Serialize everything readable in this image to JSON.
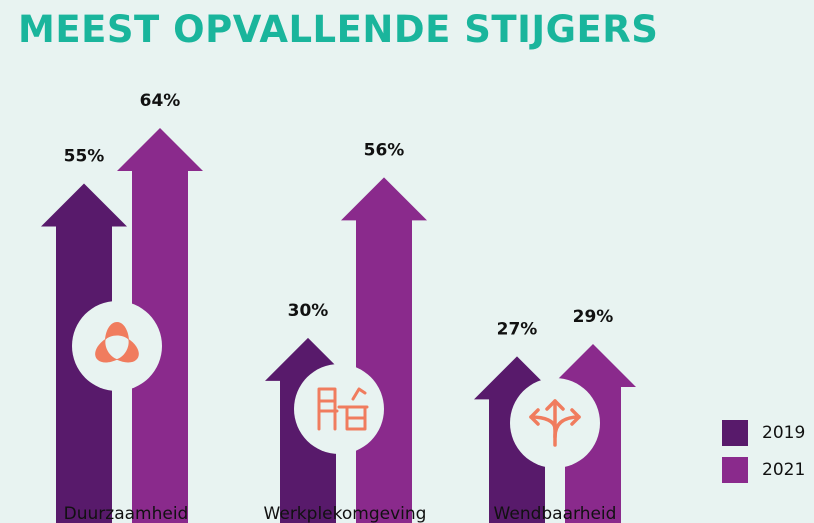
{
  "title": "MEEST OPVALLENDE STIJGERS",
  "chart_data": {
    "type": "bar",
    "title": "MEEST OPVALLENDE STIJGERS",
    "categories": [
      "Duurzaamheid",
      "Werkplekomgeving",
      "Wendbaarheid"
    ],
    "icons": [
      "recycle-leaves-icon",
      "desk-chair-icon",
      "split-arrows-icon"
    ],
    "series": [
      {
        "name": "2019",
        "color": "#581a6b",
        "values": [
          55,
          30,
          27
        ],
        "labels": [
          "55%",
          "30%",
          "27%"
        ]
      },
      {
        "name": "2021",
        "color": "#8a2a8c",
        "values": [
          64,
          56,
          29
        ],
        "labels": [
          "64%",
          "56%",
          "29%"
        ]
      }
    ],
    "ylim": [
      0,
      64
    ],
    "xlabel": "",
    "ylabel": "",
    "grid": false,
    "legend_position": "bottom-right"
  },
  "colors": {
    "title": "#1ab59c",
    "icon": "#f07c5e",
    "icon_circle": "#e8f3f1",
    "background": "#e8f3f1"
  }
}
